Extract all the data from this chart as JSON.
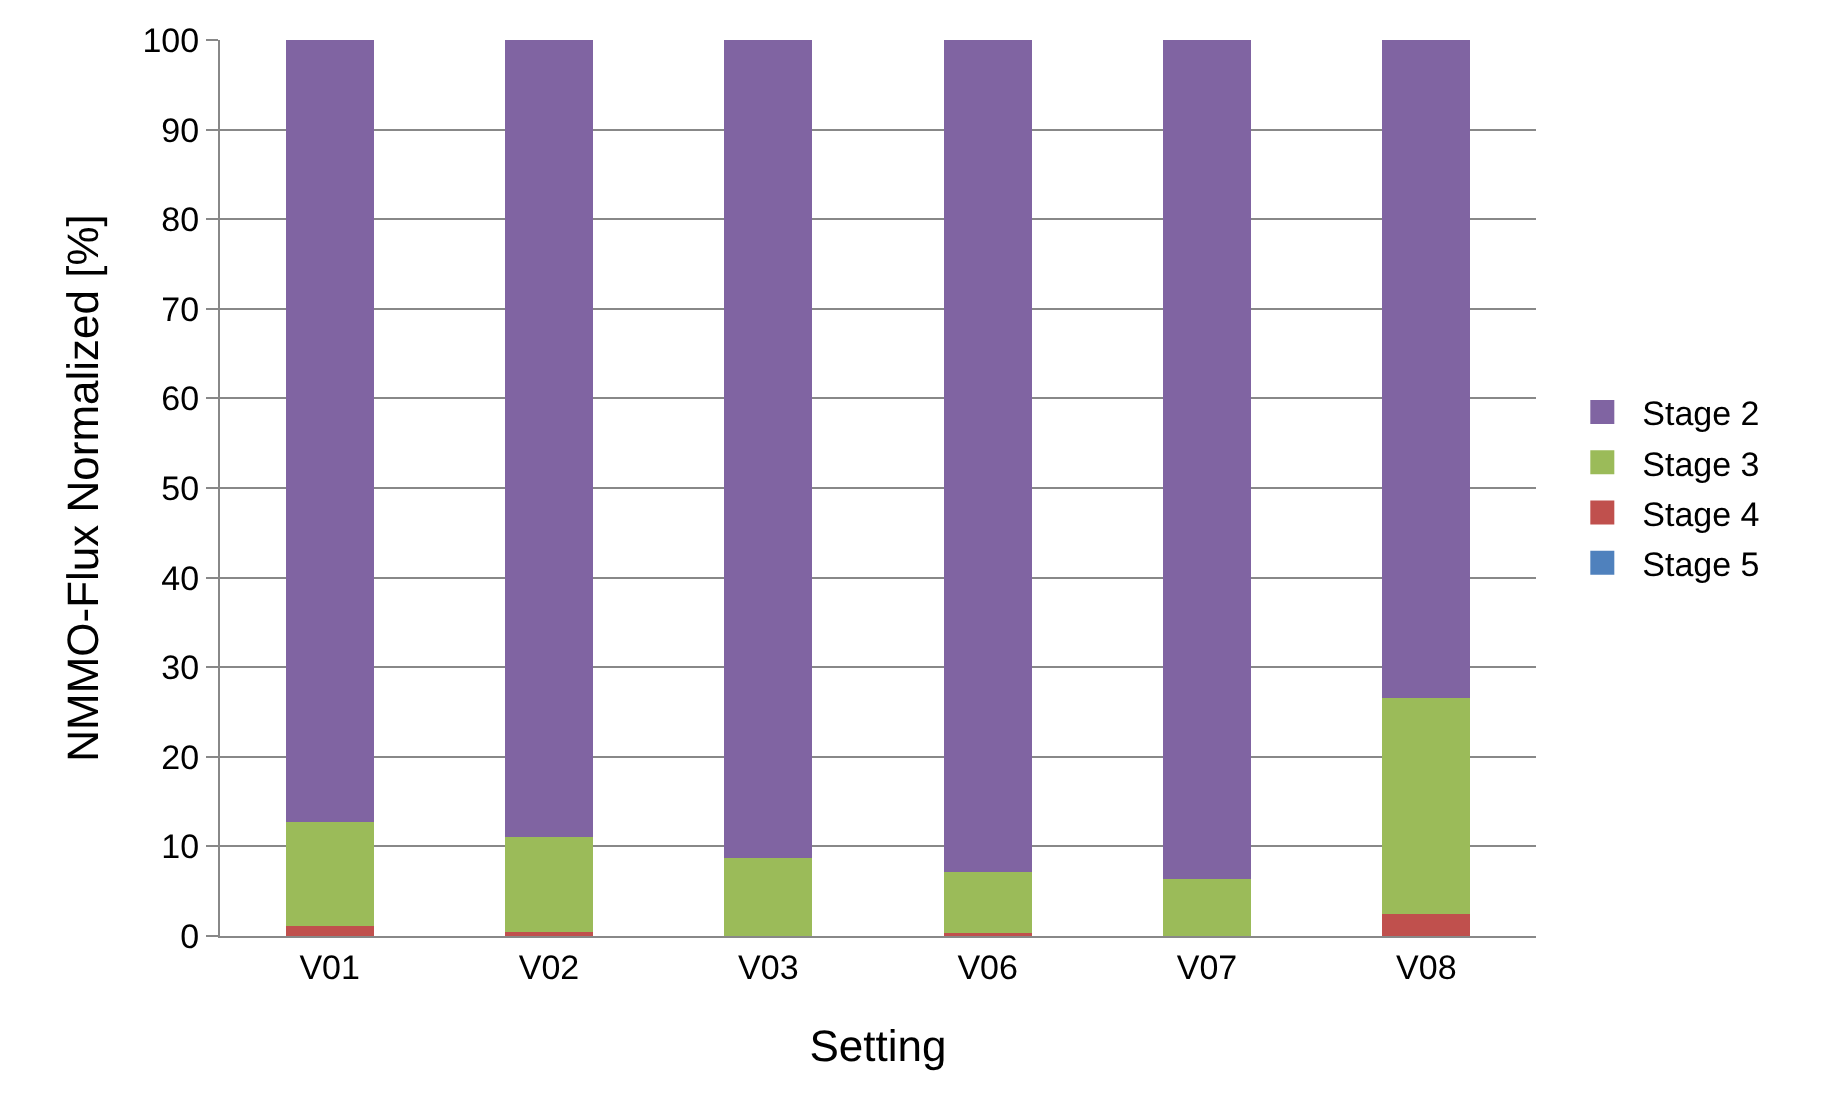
{
  "chart_data": {
    "type": "bar",
    "stacked": true,
    "xlabel": "Setting",
    "ylabel": "NMMO-Flux Normalized [%]",
    "categories": [
      "V01",
      "V02",
      "V03",
      "V06",
      "V07",
      "V08"
    ],
    "series": [
      {
        "name": "Stage 5",
        "color": "#4f81bd",
        "values": [
          0,
          0,
          0,
          0,
          0,
          0
        ]
      },
      {
        "name": "Stage 4",
        "color": "#c0504d",
        "values": [
          1.1,
          0.5,
          0,
          0.3,
          0,
          2.5
        ]
      },
      {
        "name": "Stage 3",
        "color": "#9bbb59",
        "values": [
          11.6,
          10.5,
          8.7,
          6.8,
          6.4,
          24.1
        ]
      },
      {
        "name": "Stage 2",
        "color": "#8064a2",
        "values": [
          87.3,
          89.0,
          91.3,
          92.9,
          93.6,
          73.4
        ]
      }
    ],
    "ylim": [
      0,
      100
    ],
    "yticks": [
      0,
      10,
      20,
      30,
      40,
      50,
      60,
      70,
      80,
      90,
      100
    ],
    "grid": "y",
    "legend": "right"
  }
}
